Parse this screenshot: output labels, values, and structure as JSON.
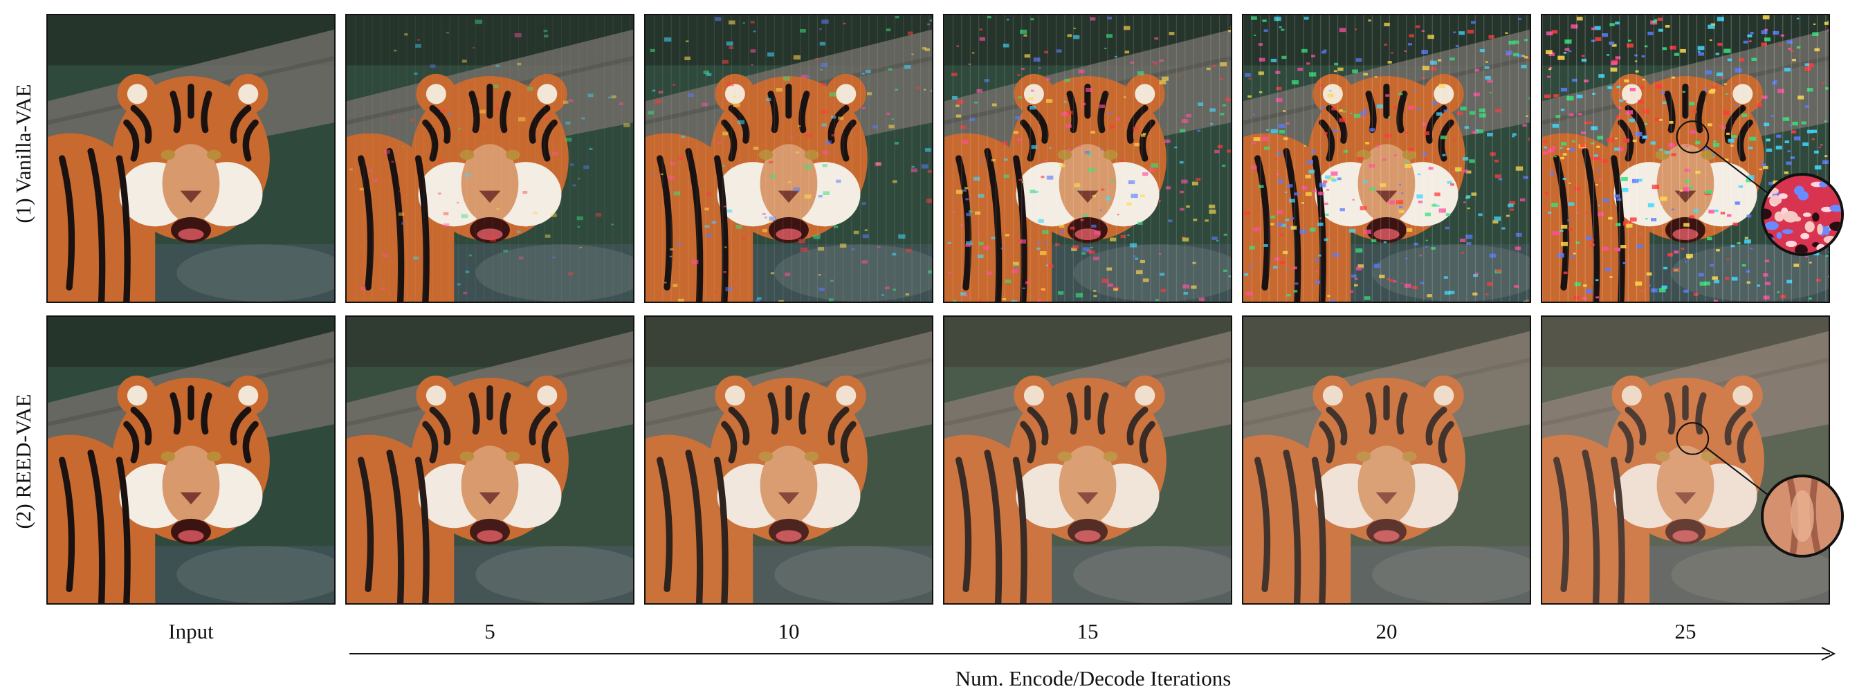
{
  "figure": {
    "row_labels": [
      "(1) Vanilla-VAE",
      "(2) REED-VAE"
    ],
    "column_labels": [
      "Input",
      "5",
      "10",
      "15",
      "20",
      "25"
    ],
    "axis_title": "Num. Encode/Decode Iterations"
  },
  "images": {
    "subject": "tiger-photo",
    "zoom_insets": [
      "vanilla-vae-iteration-25-zoom",
      "reed-vae-iteration-25-zoom"
    ]
  },
  "colors": {
    "tiger_orange": "#c8692f",
    "background_green": "#2f4a3c",
    "log_gray": "#6f6c66",
    "artifact_pink": "#ff4fa0",
    "artifact_cyan": "#40d8ff"
  }
}
